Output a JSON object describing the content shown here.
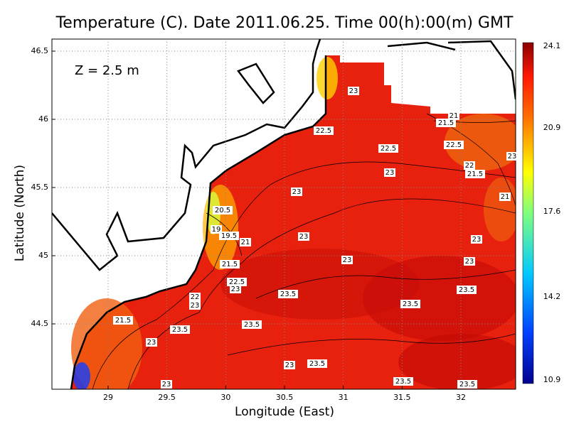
{
  "title": "Temperature (C). Date 2011.06.25. Time 00(h):00(m) GMT",
  "depth_label": "Z = 2.5 m",
  "x_axis": {
    "label": "Longitude (East)",
    "ticks": [
      29,
      29.5,
      30,
      30.5,
      31,
      31.5,
      32
    ]
  },
  "y_axis": {
    "label": "Latitude (North)",
    "ticks": [
      46.5,
      46,
      45.5,
      45,
      44.5
    ]
  },
  "colorbar": {
    "ticks": [
      24.1,
      20.9,
      17.6,
      14.2,
      10.9
    ]
  },
  "contour_labels": [
    "23",
    "22.5",
    "21",
    "21.5",
    "22.5",
    "22.5",
    "23",
    "22",
    "21.5",
    "23",
    "23",
    "21",
    "20.5",
    "19",
    "19.5",
    "21",
    "23",
    "23",
    "23",
    "23",
    "21.5",
    "22.5",
    "23",
    "23.5",
    "23.5",
    "22",
    "23",
    "23.5",
    "21.5",
    "23.5",
    "23.5",
    "23",
    "23",
    "23.5",
    "23.5",
    "23",
    "23.5"
  ]
}
